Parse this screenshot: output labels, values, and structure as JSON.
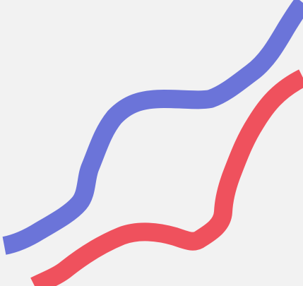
{
  "background_color": "#f2f2f2",
  "strokes": [
    {
      "name": "blue-stroke",
      "color": "#6b74d9"
    },
    {
      "name": "red-stroke",
      "color": "#ef515d"
    }
  ]
}
